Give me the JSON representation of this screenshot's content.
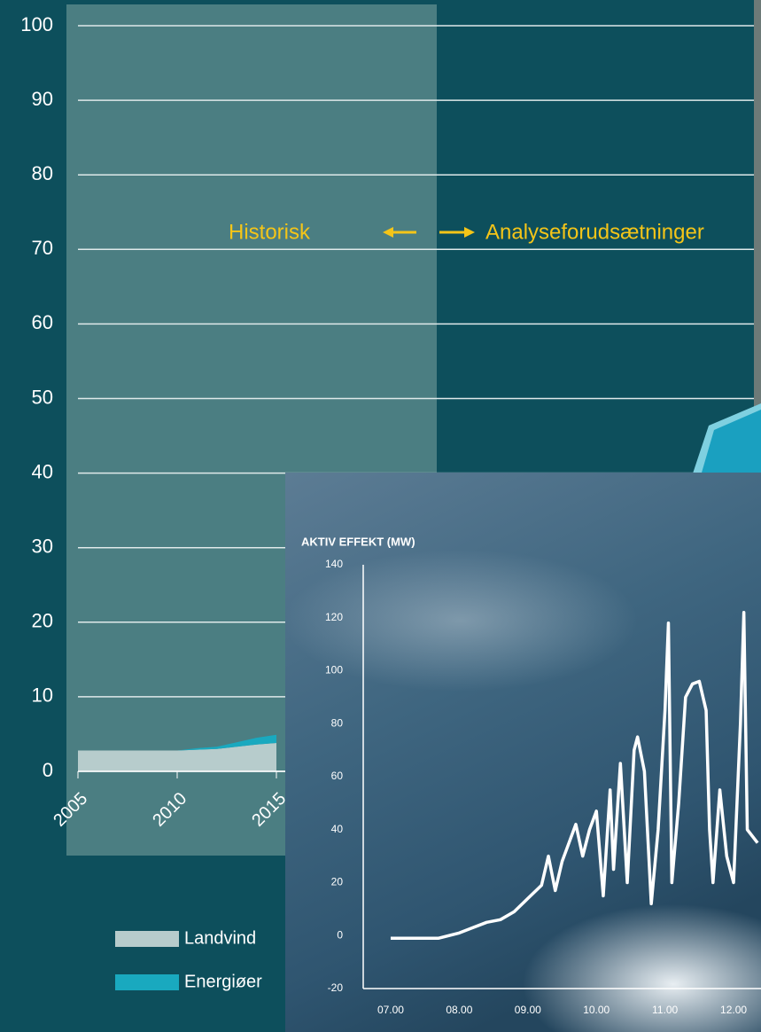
{
  "chart_data": [
    {
      "type": "area",
      "annotations": [
        "Historisk",
        "Analyseforudsætninger"
      ],
      "x": [
        2005,
        2006,
        2007,
        2008,
        2009,
        2010,
        2011,
        2012,
        2013,
        2014,
        2015
      ],
      "series": [
        {
          "name": "Landvind",
          "color": "#b7cccc",
          "values": [
            2.8,
            2.8,
            2.8,
            2.8,
            2.8,
            2.8,
            2.9,
            3.0,
            3.3,
            3.6,
            3.8
          ]
        },
        {
          "name": "Energiøer",
          "color": "#19a9bf",
          "values": [
            0,
            0,
            0,
            0,
            0,
            0,
            0.2,
            0.3,
            0.6,
            0.9,
            1.1
          ]
        }
      ],
      "xlim": [
        2005,
        2040
      ],
      "xticks": [
        2005,
        2010,
        2015
      ],
      "ylim": [
        0,
        100
      ],
      "yticks": [
        0,
        10,
        20,
        30,
        40,
        50,
        60,
        70,
        80,
        90,
        100
      ],
      "grid": true
    },
    {
      "type": "line",
      "title": "AKTIV EFFEKT (MW)",
      "x": [
        7.0,
        7.7,
        8.0,
        8.2,
        8.4,
        8.6,
        8.8,
        9.0,
        9.2,
        9.3,
        9.4,
        9.5,
        9.6,
        9.7,
        9.8,
        9.9,
        10.0,
        10.1,
        10.2,
        10.25,
        10.35,
        10.45,
        10.55,
        10.6,
        10.7,
        10.8,
        10.9,
        11.0,
        11.05,
        11.1,
        11.2,
        11.3,
        11.4,
        11.5,
        11.6,
        11.65,
        11.7,
        11.8,
        11.9,
        12.0,
        12.1,
        12.15,
        12.2,
        12.35
      ],
      "series": [
        {
          "color": "#ffffff",
          "values": [
            -1,
            -1,
            1,
            3,
            5,
            6,
            9,
            14,
            19,
            30,
            17,
            28,
            35,
            42,
            30,
            40,
            47,
            15,
            55,
            25,
            65,
            20,
            70,
            75,
            62,
            12,
            40,
            85,
            118,
            20,
            50,
            90,
            95,
            96,
            85,
            40,
            20,
            55,
            30,
            20,
            80,
            122,
            40,
            35
          ]
        }
      ],
      "xlim": [
        6.6,
        12.4
      ],
      "xticks": [
        {
          "value": 7,
          "label": "07.00"
        },
        {
          "value": 8,
          "label": "08.00"
        },
        {
          "value": 9,
          "label": "09.00"
        },
        {
          "value": 10,
          "label": "10.00"
        },
        {
          "value": 11,
          "label": "11.00"
        },
        {
          "value": 12,
          "label": "12.00"
        }
      ],
      "ylim": [
        -20,
        140
      ],
      "yticks": [
        -20,
        0,
        20,
        40,
        60,
        80,
        100,
        120,
        140
      ]
    }
  ]
}
